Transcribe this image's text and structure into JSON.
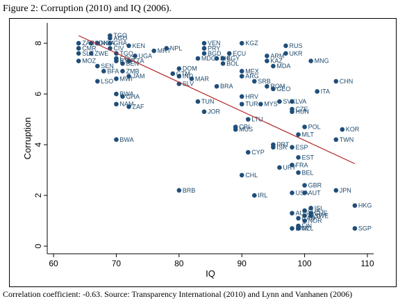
{
  "figure": {
    "title": "Figure 2: Corruption (2010) and IQ (2006).",
    "caption": "Correlation coefficient: -0.63. Source: Transparency International (2010) and Lynn and Vanhanen (2006)"
  },
  "colors": {
    "point": "#1f4e79",
    "label": "#1e4a6d",
    "fit_line": "#b22222",
    "plot_bg": "#ffffff"
  },
  "chart_data": {
    "type": "scatter",
    "xlabel": "IQ",
    "ylabel": "Corruption",
    "xlim": [
      59,
      111
    ],
    "ylim": [
      -0.3,
      8.8
    ],
    "xticks": [
      60,
      70,
      80,
      90,
      100,
      110
    ],
    "yticks": [
      0,
      2,
      4,
      6,
      8
    ],
    "grid": false,
    "legend": "none",
    "fit_line": {
      "x": [
        64,
        108
      ],
      "y": [
        8.3,
        3.25
      ]
    },
    "points": [
      {
        "label": "TGO",
        "x": 69,
        "y": 8.3
      },
      {
        "label": "ZAR",
        "x": 64,
        "y": 8.0
      },
      {
        "label": "CMR",
        "x": 64,
        "y": 7.8
      },
      {
        "label": "SLE",
        "x": 64,
        "y": 7.6
      },
      {
        "label": "MOZ",
        "x": 64,
        "y": 7.3
      },
      {
        "label": "SDN",
        "x": 66,
        "y": 8.0
      },
      {
        "label": "ZWE",
        "x": 66,
        "y": 7.6
      },
      {
        "label": "NGA",
        "x": 67,
        "y": 8.0
      },
      {
        "label": "SEN",
        "x": 67,
        "y": 7.1
      },
      {
        "label": "BFA",
        "x": 68,
        "y": 6.9
      },
      {
        "label": "LSO",
        "x": 67,
        "y": 6.5
      },
      {
        "label": "AGO",
        "x": 69,
        "y": 8.2
      },
      {
        "label": "GHA",
        "x": 69,
        "y": 8.0
      },
      {
        "label": "CIV",
        "x": 69,
        "y": 7.8
      },
      {
        "label": "TGO",
        "x": 70,
        "y": 7.6
      },
      {
        "label": "COG",
        "x": 70,
        "y": 7.4
      },
      {
        "label": "BEN",
        "x": 71,
        "y": 7.2
      },
      {
        "label": "ZMB",
        "x": 71,
        "y": 6.9
      },
      {
        "label": "MWI",
        "x": 70,
        "y": 6.6
      },
      {
        "label": "JAM",
        "x": 72,
        "y": 6.7
      },
      {
        "label": "KEN",
        "x": 72,
        "y": 7.9
      },
      {
        "label": "UGA",
        "x": 73,
        "y": 7.5
      },
      {
        "label": "TZA",
        "x": 72,
        "y": 7.3
      },
      {
        "label": "ETH",
        "x": 70,
        "y": 7.3
      },
      {
        "label": "MRT",
        "x": 76,
        "y": 7.7
      },
      {
        "label": "NPL",
        "x": 78,
        "y": 7.8
      },
      {
        "label": "BWA",
        "x": 70,
        "y": 6.0
      },
      {
        "label": "GHA",
        "x": 71,
        "y": 5.9
      },
      {
        "label": "NAM",
        "x": 70,
        "y": 5.6
      },
      {
        "label": "ZAF",
        "x": 72,
        "y": 5.5
      },
      {
        "label": "BWA",
        "x": 70,
        "y": 4.2
      },
      {
        "label": "BRB",
        "x": 80,
        "y": 2.2
      },
      {
        "label": "DOM",
        "x": 80,
        "y": 7.0
      },
      {
        "label": "GTM",
        "x": 79,
        "y": 6.8
      },
      {
        "label": "IND",
        "x": 80,
        "y": 6.7
      },
      {
        "label": "SLV",
        "x": 80,
        "y": 6.4
      },
      {
        "label": "MAR",
        "x": 82,
        "y": 6.6
      },
      {
        "label": "BRA",
        "x": 86,
        "y": 6.3
      },
      {
        "label": "TUN",
        "x": 83,
        "y": 5.7
      },
      {
        "label": "JOR",
        "x": 84,
        "y": 5.3
      },
      {
        "label": "VEN",
        "x": 84,
        "y": 8.0
      },
      {
        "label": "KGZ",
        "x": 90,
        "y": 8.0
      },
      {
        "label": "PRY",
        "x": 84,
        "y": 7.8
      },
      {
        "label": "BGD",
        "x": 84,
        "y": 7.6
      },
      {
        "label": "MDG",
        "x": 83,
        "y": 7.4
      },
      {
        "label": "ECU",
        "x": 88,
        "y": 7.6
      },
      {
        "label": "PHL",
        "x": 86,
        "y": 7.4
      },
      {
        "label": "BOL",
        "x": 87,
        "y": 7.2
      },
      {
        "label": "EGY",
        "x": 87,
        "y": 7.4
      },
      {
        "label": "MEX",
        "x": 90,
        "y": 6.9
      },
      {
        "label": "ARG",
        "x": 90,
        "y": 6.7
      },
      {
        "label": "ARM",
        "x": 94,
        "y": 7.5
      },
      {
        "label": "KAZ",
        "x": 94,
        "y": 7.3
      },
      {
        "label": "MDA",
        "x": 95,
        "y": 7.1
      },
      {
        "label": "RUS",
        "x": 97,
        "y": 7.9
      },
      {
        "label": "UKR",
        "x": 97,
        "y": 7.6
      },
      {
        "label": "MNG",
        "x": 101,
        "y": 7.3
      },
      {
        "label": "SRB",
        "x": 92,
        "y": 6.5
      },
      {
        "label": "ROM",
        "x": 94,
        "y": 6.3
      },
      {
        "label": "GEO",
        "x": 95,
        "y": 6.2
      },
      {
        "label": "CHN",
        "x": 105,
        "y": 6.5
      },
      {
        "label": "ITA",
        "x": 102,
        "y": 6.1
      },
      {
        "label": "HRV",
        "x": 90,
        "y": 5.9
      },
      {
        "label": "TUR",
        "x": 90,
        "y": 5.6
      },
      {
        "label": "MYS",
        "x": 93,
        "y": 5.6
      },
      {
        "label": "SVK",
        "x": 96,
        "y": 5.7
      },
      {
        "label": "LVA",
        "x": 98,
        "y": 5.7
      },
      {
        "label": "CZE",
        "x": 98,
        "y": 5.4
      },
      {
        "label": "HUN",
        "x": 98,
        "y": 5.3
      },
      {
        "label": "LTU",
        "x": 91,
        "y": 5.0
      },
      {
        "label": "POL",
        "x": 100,
        "y": 4.7
      },
      {
        "label": "KOR",
        "x": 106,
        "y": 4.6
      },
      {
        "label": "CRI",
        "x": 89,
        "y": 4.7
      },
      {
        "label": "MUS",
        "x": 89,
        "y": 4.6
      },
      {
        "label": "MLT",
        "x": 99,
        "y": 4.4
      },
      {
        "label": "TWN",
        "x": 105,
        "y": 4.2
      },
      {
        "label": "PRT",
        "x": 95,
        "y": 4.0
      },
      {
        "label": "ISR",
        "x": 95,
        "y": 3.9
      },
      {
        "label": "ESP",
        "x": 98,
        "y": 3.9
      },
      {
        "label": "CYP",
        "x": 91,
        "y": 3.7
      },
      {
        "label": "EST",
        "x": 99,
        "y": 3.5
      },
      {
        "label": "FRA",
        "x": 98,
        "y": 3.2
      },
      {
        "label": "URY",
        "x": 96,
        "y": 3.1
      },
      {
        "label": "BEL",
        "x": 99,
        "y": 2.9
      },
      {
        "label": "CHL",
        "x": 90,
        "y": 2.8
      },
      {
        "label": "GBR",
        "x": 100,
        "y": 2.4
      },
      {
        "label": "USA",
        "x": 98,
        "y": 2.1
      },
      {
        "label": "AUT",
        "x": 100,
        "y": 2.1
      },
      {
        "label": "JPN",
        "x": 105,
        "y": 2.2
      },
      {
        "label": "IRL",
        "x": 92,
        "y": 2.0
      },
      {
        "label": "HKG",
        "x": 108,
        "y": 1.6
      },
      {
        "label": "AUS",
        "x": 98,
        "y": 1.3
      },
      {
        "label": "ISL",
        "x": 101,
        "y": 1.5
      },
      {
        "label": "CHE",
        "x": 101,
        "y": 1.3
      },
      {
        "label": "LUX",
        "x": 100,
        "y": 1.4
      },
      {
        "label": "SWE",
        "x": 101,
        "y": 1.2
      },
      {
        "label": "NLD",
        "x": 100,
        "y": 1.2
      },
      {
        "label": "CAN",
        "x": 99,
        "y": 1.1
      },
      {
        "label": "NOR",
        "x": 100,
        "y": 1.0
      },
      {
        "label": "FIN",
        "x": 99,
        "y": 0.8
      },
      {
        "label": "DNK",
        "x": 98,
        "y": 0.7
      },
      {
        "label": "NZL",
        "x": 99,
        "y": 0.7
      },
      {
        "label": "SGP",
        "x": 108,
        "y": 0.7
      }
    ]
  }
}
